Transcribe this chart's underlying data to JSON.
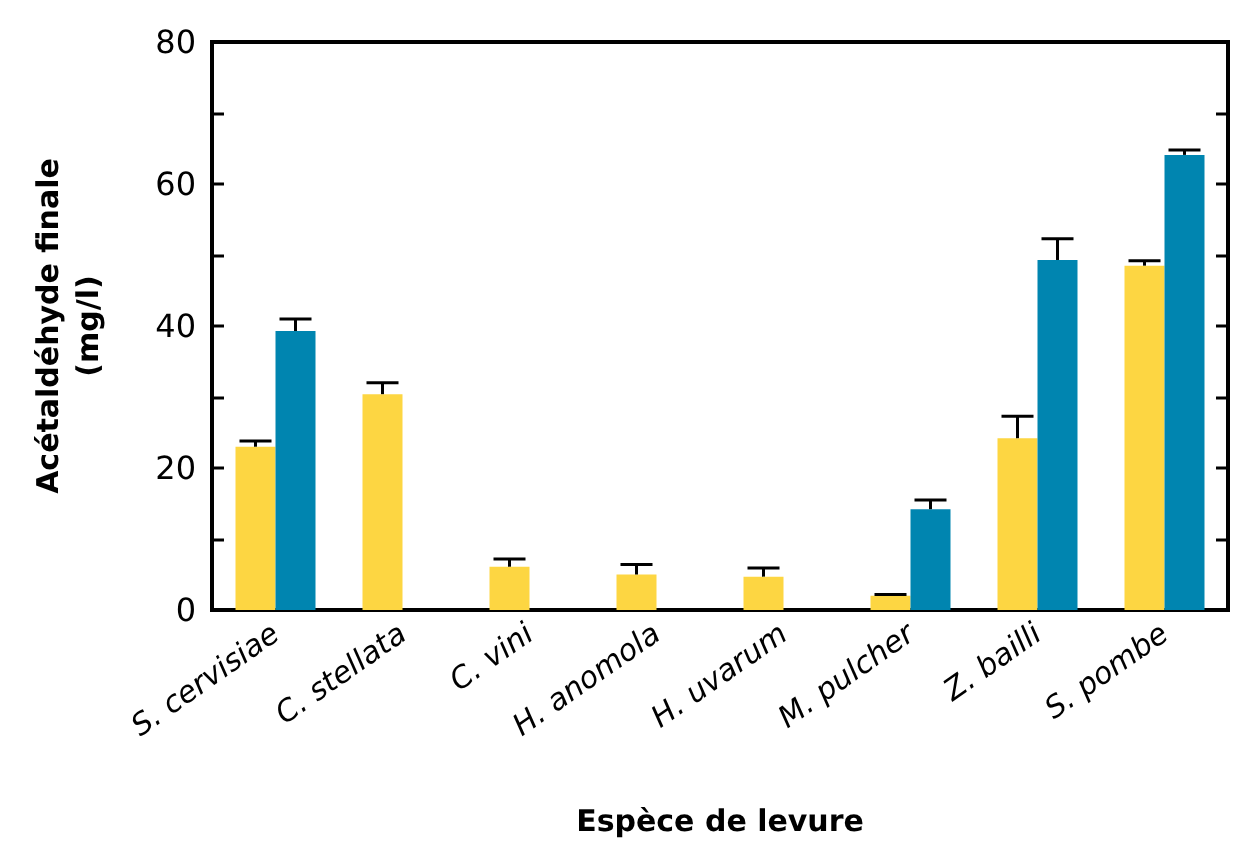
{
  "chart_data": {
    "type": "bar",
    "xlabel": "Espèce de levure",
    "ylabel": "Acétaldéhyde finale\n(mg/l)",
    "categories": [
      "S. cervisiae",
      "C. stellata",
      "C. vini",
      "H. anomola",
      "H. uvarum",
      "M. pulcher",
      "Z. bailli",
      "S. pombe"
    ],
    "series": [
      {
        "color": "#fdd642",
        "values": [
          23,
          30.4,
          6.1,
          5,
          4.7,
          2,
          24.2,
          48.5
        ],
        "errors": [
          [
            23,
            23.8
          ],
          [
            30.4,
            32
          ],
          [
            6.1,
            7.2
          ],
          [
            5,
            6.4
          ],
          [
            4.7,
            5.9
          ],
          [
            2,
            2.2
          ],
          [
            24.2,
            27.3
          ],
          [
            48.5,
            49.2
          ]
        ]
      },
      {
        "color": "#0085b0",
        "values": [
          39.3,
          null,
          null,
          null,
          null,
          14.2,
          49.3,
          64.1
        ],
        "errors": [
          [
            39.3,
            41
          ],
          null,
          null,
          null,
          null,
          [
            14.2,
            15.5
          ],
          [
            49.3,
            52.3
          ],
          [
            64.1,
            64.8
          ]
        ]
      }
    ],
    "ylim": [
      0,
      80
    ],
    "yticks": [
      0,
      {
        "value": 10,
        "label": null
      },
      20,
      {
        "value": 30,
        "label": null
      },
      40,
      {
        "value": 50,
        "label": null
      },
      60,
      {
        "value": 70,
        "label": null
      },
      80
    ],
    "grid": false
  }
}
